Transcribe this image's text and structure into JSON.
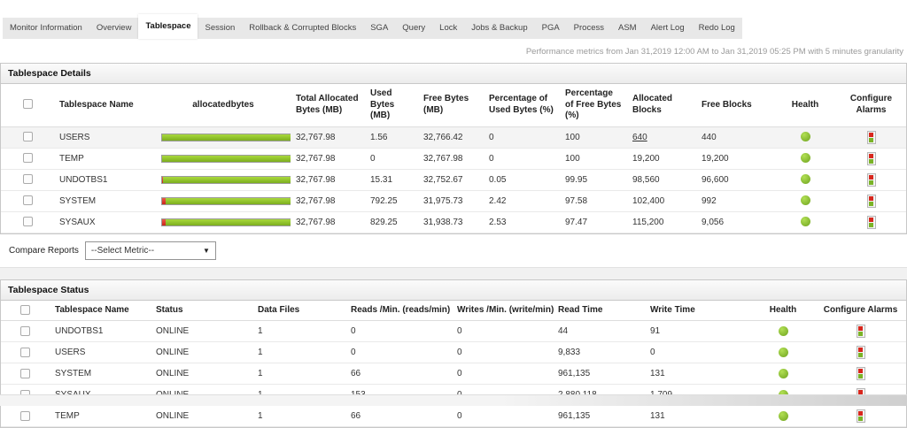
{
  "tabs": {
    "items": [
      "Monitor Information",
      "Overview",
      "Tablespace",
      "Session",
      "Rollback & Corrupted Blocks",
      "SGA",
      "Query",
      "Lock",
      "Jobs & Backup",
      "PGA",
      "Process",
      "ASM",
      "Alert Log",
      "Redo Log"
    ],
    "active": "Tablespace"
  },
  "info_text": "Performance metrics from Jan 31,2019 12:00 AM to Jan 31,2019 05:25 PM with 5 minutes granularity",
  "tablespace_details": {
    "title": "Tablespace Details",
    "columns": [
      "Tablespace Name",
      "allocatedbytes",
      "Total Allocated Bytes  (MB)",
      "Used Bytes  (MB)",
      "Free Bytes  (MB)",
      "Percentage of Used Bytes  (%)",
      "Percentage of Free Bytes  (%)",
      "Allocated Blocks",
      "Free Blocks",
      "Health",
      "Configure Alarms"
    ],
    "rows": [
      {
        "name": "USERS",
        "bar_used_pct": 0,
        "total_allocated_mb": "32,767.98",
        "used_mb": "1.56",
        "free_mb": "32,766.42",
        "pct_used": "0",
        "pct_free": "100",
        "allocated_blocks": "640",
        "allocated_blocks_underlined": true,
        "free_blocks": "440",
        "health": "green",
        "highlighted": true
      },
      {
        "name": "TEMP",
        "bar_used_pct": 0,
        "total_allocated_mb": "32,767.98",
        "used_mb": "0",
        "free_mb": "32,767.98",
        "pct_used": "0",
        "pct_free": "100",
        "allocated_blocks": "19,200",
        "allocated_blocks_underlined": false,
        "free_blocks": "19,200",
        "health": "green",
        "highlighted": false
      },
      {
        "name": "UNDOTBS1",
        "bar_used_pct": 0.05,
        "total_allocated_mb": "32,767.98",
        "used_mb": "15.31",
        "free_mb": "32,752.67",
        "pct_used": "0.05",
        "pct_free": "99.95",
        "allocated_blocks": "98,560",
        "allocated_blocks_underlined": false,
        "free_blocks": "96,600",
        "health": "green",
        "highlighted": false
      },
      {
        "name": "SYSTEM",
        "bar_used_pct": 2.42,
        "total_allocated_mb": "32,767.98",
        "used_mb": "792.25",
        "free_mb": "31,975.73",
        "pct_used": "2.42",
        "pct_free": "97.58",
        "allocated_blocks": "102,400",
        "allocated_blocks_underlined": false,
        "free_blocks": "992",
        "health": "green",
        "highlighted": false
      },
      {
        "name": "SYSAUX",
        "bar_used_pct": 2.53,
        "total_allocated_mb": "32,767.98",
        "used_mb": "829.25",
        "free_mb": "31,938.73",
        "pct_used": "2.53",
        "pct_free": "97.47",
        "allocated_blocks": "115,200",
        "allocated_blocks_underlined": false,
        "free_blocks": "9,056",
        "health": "green",
        "highlighted": false
      }
    ]
  },
  "compare_reports": {
    "label": "Compare Reports",
    "selected_option": "--Select Metric--"
  },
  "tablespace_status": {
    "title": "Tablespace Status",
    "columns": [
      "Tablespace Name",
      "Status",
      "Data Files",
      "Reads /Min.  (reads/min)",
      "Writes /Min.  (write/min)",
      "Read Time",
      "Write Time",
      "Health",
      "Configure Alarms"
    ],
    "rows": [
      {
        "name": "UNDOTBS1",
        "status": "ONLINE",
        "data_files": "1",
        "reads_per_min": "0",
        "writes_per_min": "0",
        "read_time": "44",
        "write_time": "91",
        "health": "green"
      },
      {
        "name": "USERS",
        "status": "ONLINE",
        "data_files": "1",
        "reads_per_min": "0",
        "writes_per_min": "0",
        "read_time": "9,833",
        "write_time": "0",
        "health": "green"
      },
      {
        "name": "SYSTEM",
        "status": "ONLINE",
        "data_files": "1",
        "reads_per_min": "66",
        "writes_per_min": "0",
        "read_time": "961,135",
        "write_time": "131",
        "health": "green"
      },
      {
        "name": "SYSAUX",
        "status": "ONLINE",
        "data_files": "1",
        "reads_per_min": "153",
        "writes_per_min": "0",
        "read_time": "2,880,118",
        "write_time": "1,709",
        "health": "green"
      },
      {
        "name": "TEMP",
        "status": "ONLINE",
        "data_files": "1",
        "reads_per_min": "66",
        "writes_per_min": "0",
        "read_time": "961,135",
        "write_time": "131",
        "health": "green"
      }
    ]
  },
  "colors": {
    "bar_green": "#8cc63e",
    "bar_red": "#d8271d",
    "health_green": "#7ab327",
    "tab_bar_bg": "#e8e8e8"
  }
}
